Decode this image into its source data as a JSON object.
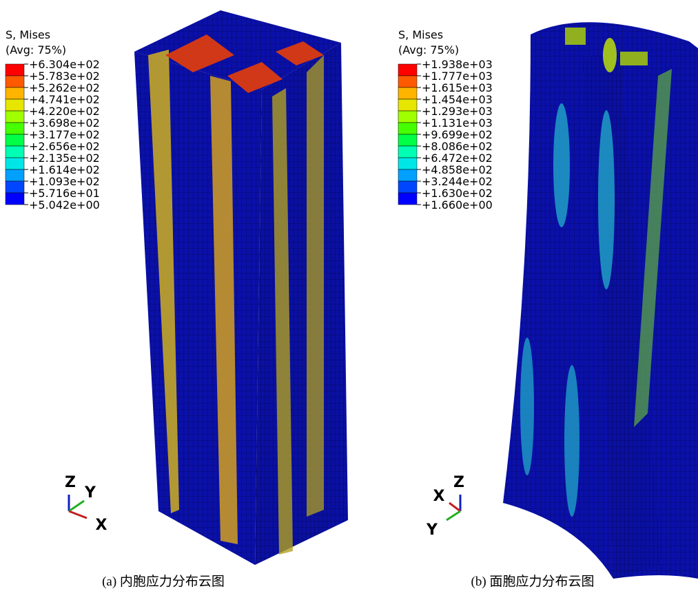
{
  "panels": [
    {
      "legend_title": "S, Mises",
      "legend_subtitle": "(Avg: 75%)",
      "legend_labels": [
        "+6.304e+02",
        "+5.783e+02",
        "+5.262e+02",
        "+4.741e+02",
        "+4.220e+02",
        "+3.698e+02",
        "+3.177e+02",
        "+2.656e+02",
        "+2.135e+02",
        "+1.614e+02",
        "+1.093e+02",
        "+5.716e+01",
        "+5.042e+00"
      ],
      "axes": {
        "z": "Z",
        "y": "Y",
        "x": "X"
      },
      "caption": "(a)  内胞应力分布云图"
    },
    {
      "legend_title": "S, Mises",
      "legend_subtitle": "(Avg: 75%)",
      "legend_labels": [
        "+1.938e+03",
        "+1.777e+03",
        "+1.615e+03",
        "+1.454e+03",
        "+1.293e+03",
        "+1.131e+03",
        "+9.699e+02",
        "+8.086e+02",
        "+6.472e+02",
        "+4.858e+02",
        "+3.244e+02",
        "+1.630e+02",
        "+1.660e+00"
      ],
      "axes": {
        "z": "Z",
        "x": "X",
        "y": "Y"
      },
      "caption": "(b)  面胞应力分布云图"
    }
  ]
}
